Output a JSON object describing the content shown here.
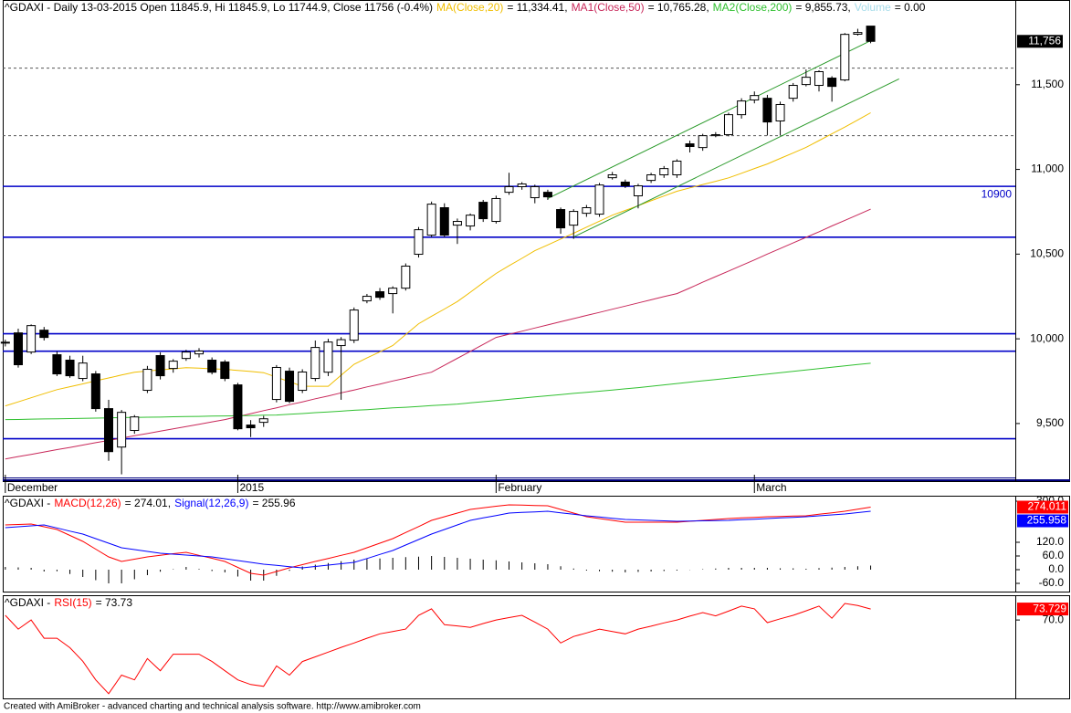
{
  "chart_data": [
    {
      "type": "candlestick",
      "title": "^GDAXI - Daily 13-03-2015 Open 11845.9, Hi 11845.9, Lo 11744.9, Close 11756 (-0.4%)",
      "xlim": [
        -0.2,
        78.2
      ],
      "xticks": [
        {
          "value": 0,
          "label": "December"
        },
        {
          "value": 18,
          "label": "2015"
        },
        {
          "value": 38,
          "label": "February"
        },
        {
          "value": 58,
          "label": "March"
        }
      ],
      "ylim": [
        9160,
        12000
      ],
      "yticks": [
        {
          "value": 9500,
          "label": "9,500"
        },
        {
          "value": 10000,
          "label": "10,000"
        },
        {
          "value": 10500,
          "label": "10,500"
        },
        {
          "value": 11000,
          "label": "11,000"
        },
        {
          "value": 11500,
          "label": "11,500"
        }
      ],
      "up_color": "#ffffff",
      "down_color": "#000000",
      "open": [
        9976,
        10035,
        9922,
        10051,
        9906,
        9874,
        9766,
        9793,
        9588,
        9361,
        9459,
        9696,
        9901,
        9825,
        9884,
        9911,
        9874,
        9863,
        9728,
        9491,
        9507,
        9642,
        9809,
        9696,
        9766,
        9803,
        9960,
        9992,
        10224,
        10278,
        10267,
        10299,
        10499,
        10612,
        10774,
        10671,
        10666,
        10806,
        10693,
        10865,
        10898,
        10833,
        10865,
        10763,
        10671,
        10741,
        10736,
        10951,
        10925,
        10844,
        10935,
        10968,
        10968,
        11151,
        11129,
        11199,
        11205,
        11323,
        11410,
        11420,
        11286,
        11420,
        11501,
        11496,
        11539,
        11528,
        11798,
        11845.9
      ],
      "high": [
        9995,
        10060,
        10085,
        10070,
        9925,
        9900,
        9900,
        9810,
        9640,
        9580,
        9550,
        9840,
        9920,
        9880,
        9935,
        9945,
        9890,
        9875,
        9740,
        9520,
        9545,
        9845,
        9830,
        9820,
        9990,
        10000,
        10010,
        10185,
        10265,
        10300,
        10310,
        10445,
        10660,
        10810,
        10800,
        10710,
        10740,
        10820,
        10845,
        10980,
        10925,
        10910,
        10880,
        10775,
        10765,
        10790,
        10920,
        10985,
        10940,
        10915,
        10980,
        11020,
        11060,
        11170,
        11210,
        11220,
        11335,
        11420,
        11460,
        11440,
        11400,
        11510,
        11590,
        11585,
        11550,
        11805,
        11830,
        11845.9
      ],
      "low": [
        9955,
        9830,
        9910,
        9990,
        9780,
        9770,
        9750,
        9570,
        9280,
        9200,
        9440,
        9680,
        9760,
        9800,
        9870,
        9890,
        9790,
        9750,
        9460,
        9420,
        9480,
        9625,
        9620,
        9680,
        9750,
        9780,
        9640,
        9975,
        10210,
        10230,
        10150,
        10285,
        10480,
        10600,
        10600,
        10560,
        10640,
        10690,
        10680,
        10850,
        10880,
        10800,
        10820,
        10620,
        10590,
        10720,
        10720,
        10940,
        10890,
        10770,
        10920,
        10950,
        10950,
        11100,
        11110,
        11190,
        11195,
        11300,
        11390,
        11200,
        11200,
        11400,
        11490,
        11460,
        11400,
        11520,
        11790,
        11744.9
      ],
      "close": [
        9980,
        9847,
        10078,
        10008,
        9793,
        9782,
        9857,
        9588,
        9334,
        9566,
        9539,
        9820,
        9782,
        9868,
        9922,
        9928,
        9803,
        9766,
        9469,
        9475,
        9528,
        9831,
        9631,
        9804,
        9949,
        9981,
        9995,
        10170,
        10251,
        10245,
        10299,
        10429,
        10644,
        10795,
        10612,
        10693,
        10730,
        10709,
        10828,
        10898,
        10914,
        10898,
        10838,
        10655,
        10752,
        10774,
        10908,
        10968,
        10903,
        10903,
        10968,
        11005,
        11049,
        11135,
        11199,
        11205,
        11323,
        11404,
        11436,
        11280,
        11383,
        11496,
        11544,
        11577,
        11490,
        11797,
        11808,
        11756
      ],
      "series": [
        {
          "name": "MA(Close,20)",
          "color": "#f0be00",
          "header_value": "= 11,334.41,",
          "values": [
            9604,
            9628,
            9652,
            9676,
            9700,
            9717,
            9734,
            9752,
            9769,
            9786,
            9803,
            9810,
            9817,
            9823,
            9830,
            9827,
            9823,
            9820,
            9813,
            9807,
            9800,
            9773,
            9747,
            9720,
            9720,
            9720,
            9785,
            9850,
            9887,
            9923,
            9960,
            10025,
            10089,
            10133,
            10176,
            10220,
            10275,
            10331,
            10386,
            10431,
            10475,
            10520,
            10554,
            10589,
            10623,
            10659,
            10694,
            10730,
            10758,
            10786,
            10815,
            10843,
            10871,
            10891,
            10911,
            10930,
            10950,
            10977,
            11005,
            11032,
            11065,
            11097,
            11130,
            11170,
            11210,
            11250,
            11292,
            11334.41
          ]
        },
        {
          "name": "MA1(Close,50)",
          "color": "#c8285a",
          "header_value": "= 10,765.28,",
          "values": [
            9291,
            9305,
            9318,
            9332,
            9346,
            9359,
            9373,
            9387,
            9400,
            9414,
            9428,
            9441,
            9455,
            9469,
            9482,
            9496,
            9510,
            9523,
            9541,
            9558,
            9576,
            9593,
            9611,
            9628,
            9646,
            9663,
            9681,
            9698,
            9716,
            9733,
            9751,
            9768,
            9786,
            9803,
            9844,
            9885,
            9926,
            9967,
            10008,
            10027,
            10045,
            10064,
            10082,
            10101,
            10119,
            10138,
            10156,
            10175,
            10193,
            10212,
            10230,
            10249,
            10267,
            10300,
            10334,
            10367,
            10400,
            10433,
            10466,
            10500,
            10533,
            10566,
            10599,
            10632,
            10666,
            10699,
            10732,
            10765.28
          ]
        },
        {
          "name": "MA2(Close,200)",
          "color": "#30c030",
          "header_value": "= 9,855.73,",
          "values": [
            9523,
            9524,
            9526,
            9527,
            9528,
            9529,
            9531,
            9532,
            9533,
            9535,
            9536,
            9537,
            9538,
            9540,
            9541,
            9542,
            9544,
            9545,
            9546,
            9547,
            9549,
            9550,
            9555,
            9559,
            9564,
            9568,
            9573,
            9578,
            9582,
            9587,
            9592,
            9596,
            9601,
            9606,
            9610,
            9615,
            9622,
            9629,
            9636,
            9643,
            9650,
            9657,
            9664,
            9671,
            9678,
            9684,
            9691,
            9698,
            9705,
            9712,
            9720,
            9728,
            9736,
            9744,
            9752,
            9760,
            9768,
            9776,
            9784,
            9792,
            9800,
            9808,
            9816,
            9824,
            9832,
            9840,
            9848,
            9855.73
          ]
        }
      ],
      "volume": {
        "name": "Volume",
        "color": "#a6dcea",
        "header_value": "= 0.00"
      },
      "hlines": [
        {
          "value": 10900,
          "color": "#0000c8",
          "label": "10900"
        },
        {
          "value": 10600,
          "color": "#0000c8"
        },
        {
          "value": 10030,
          "color": "#0000c8"
        },
        {
          "value": 9927,
          "color": "#0000c8"
        },
        {
          "value": 9410,
          "color": "#0000c8"
        },
        {
          "value": 11598,
          "color": "#555555",
          "style": "dashed"
        },
        {
          "value": 11199,
          "color": "#555555",
          "style": "dashed"
        }
      ],
      "trendlines": [
        {
          "color": "#2a9a2a",
          "x": [
            42,
            67
          ],
          "y": [
            10828,
            11760
          ]
        },
        {
          "color": "#2a9a2a",
          "x": [
            44,
            69.2
          ],
          "y": [
            10601,
            11534
          ]
        }
      ],
      "last_price": {
        "value": 11756,
        "label": "11,756",
        "color": "#000000"
      }
    },
    {
      "type": "line",
      "title": "^GDAXI -",
      "ylim": [
        -96,
        324
      ],
      "yticks": [
        {
          "value": 300,
          "label": "300.0"
        },
        {
          "value": 120,
          "label": "120.0"
        },
        {
          "value": 60,
          "label": "60.0"
        },
        {
          "value": 0,
          "label": "0.0"
        },
        {
          "value": -60,
          "label": "-60.0"
        }
      ],
      "histogram_color": "#000000",
      "series": [
        {
          "name": "MACD(12,26)",
          "color": "#ff0000",
          "header_value": "= 274.01,",
          "last_label": "274.011",
          "values": [
            196,
            198,
            200,
            188,
            176,
            150,
            124,
            90,
            56,
            36,
            46,
            56,
            63,
            70,
            76,
            63,
            50,
            36,
            10,
            -16,
            -24,
            -8,
            8,
            22,
            36,
            49,
            63,
            76,
            96,
            116,
            136,
            163,
            189,
            216,
            232,
            248,
            264,
            271,
            278,
            284,
            283,
            281,
            280,
            264,
            248,
            232,
            224,
            216,
            208,
            208,
            208,
            208,
            208,
            212,
            216,
            220,
            224,
            227,
            229,
            232,
            233,
            235,
            236,
            243,
            249,
            256,
            265,
            274.011
          ]
        },
        {
          "name": "Signal(12,26,9)",
          "color": "#0000ff",
          "header_value": "= 255.96",
          "last_label": "255.958",
          "values": [
            184,
            188,
            192,
            196,
            183,
            169,
            156,
            136,
            116,
            96,
            88,
            80,
            72,
            68,
            64,
            60,
            56,
            48,
            40,
            32,
            24,
            19,
            13,
            8,
            14,
            20,
            26,
            32,
            49,
            67,
            84,
            108,
            132,
            156,
            176,
            196,
            216,
            227,
            237,
            248,
            251,
            253,
            256,
            249,
            243,
            236,
            231,
            225,
            220,
            218,
            216,
            214,
            212,
            213,
            214,
            215,
            216,
            219,
            221,
            224,
            227,
            229,
            232,
            236,
            240,
            244,
            250,
            255.958
          ]
        }
      ]
    },
    {
      "type": "line",
      "title": "^GDAXI -",
      "ylim": [
        43.4,
        78.4
      ],
      "yticks": [
        {
          "value": 70,
          "label": "70.0"
        }
      ],
      "series": [
        {
          "name": "RSI(15)",
          "color": "#ff0000",
          "header_value": "= 73.73",
          "last_label": "73.729",
          "values": [
            71.6,
            66.9,
            70,
            63.8,
            63.8,
            60.6,
            56,
            49.7,
            45,
            51.3,
            49.7,
            56.9,
            52.8,
            58.4,
            58.4,
            58.4,
            55.9,
            52.8,
            49.7,
            48.1,
            47.5,
            54.4,
            51.3,
            55.9,
            57.5,
            59.1,
            60.7,
            62.2,
            63.8,
            65.3,
            66.1,
            66.9,
            71.6,
            73.8,
            68.4,
            68,
            67.5,
            68.8,
            70,
            70.8,
            71.6,
            69.3,
            66.9,
            62.2,
            64.4,
            65.6,
            66.9,
            66.1,
            65.3,
            66.9,
            67.9,
            69,
            70,
            71.3,
            72.5,
            71.4,
            73,
            74.7,
            73.8,
            69.1,
            70.4,
            71.6,
            73.1,
            74.7,
            70.6,
            75.6,
            74.9,
            73.729
          ]
        }
      ]
    }
  ],
  "footer": "Created with AmiBroker - advanced charting and technical analysis software. http://www.amibroker.com"
}
